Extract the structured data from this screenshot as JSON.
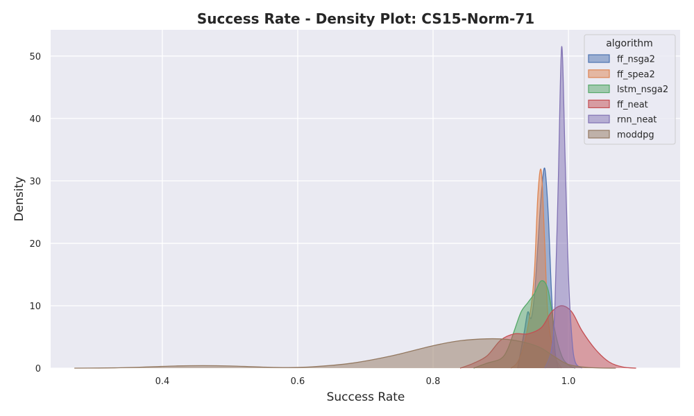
{
  "chart_data": {
    "type": "area",
    "title": "Success Rate - Density Plot: CS15-Norm-71",
    "xlabel": "Success Rate",
    "ylabel": "Density",
    "xlim": [
      0.235,
      1.165
    ],
    "ylim": [
      0,
      54.2
    ],
    "x_ticks": [
      0.4,
      0.6,
      0.8,
      1.0
    ],
    "x_tick_labels": [
      "0.4",
      "0.6",
      "0.8",
      "1.0"
    ],
    "y_ticks": [
      0,
      10,
      20,
      30,
      40,
      50
    ],
    "y_tick_labels": [
      "0",
      "10",
      "20",
      "30",
      "40",
      "50"
    ],
    "grid": true,
    "legend": {
      "title": "algorithm",
      "placement": "top-right"
    },
    "series": [
      {
        "name": "ff_nsga2",
        "color": "#4c72b0",
        "points": [
          [
            0.925,
            0
          ],
          [
            0.935,
            6
          ],
          [
            0.94,
            9
          ],
          [
            0.945,
            8
          ],
          [
            0.95,
            12
          ],
          [
            0.955,
            20
          ],
          [
            0.96,
            28
          ],
          [
            0.965,
            32
          ],
          [
            0.97,
            25
          ],
          [
            0.975,
            12
          ],
          [
            0.98,
            3
          ],
          [
            0.985,
            0
          ]
        ]
      },
      {
        "name": "ff_spea2",
        "color": "#dd8452",
        "points": [
          [
            0.915,
            0
          ],
          [
            0.925,
            1
          ],
          [
            0.935,
            4
          ],
          [
            0.945,
            10
          ],
          [
            0.95,
            16
          ],
          [
            0.955,
            28
          ],
          [
            0.96,
            31.5
          ],
          [
            0.965,
            20
          ],
          [
            0.97,
            8
          ],
          [
            0.98,
            2
          ],
          [
            0.99,
            0
          ]
        ]
      },
      {
        "name": "lstm_nsga2",
        "color": "#55a868",
        "points": [
          [
            0.86,
            0
          ],
          [
            0.88,
            0.8
          ],
          [
            0.9,
            1.5
          ],
          [
            0.91,
            3
          ],
          [
            0.92,
            6
          ],
          [
            0.93,
            9
          ],
          [
            0.94,
            10.5
          ],
          [
            0.95,
            12
          ],
          [
            0.96,
            14
          ],
          [
            0.97,
            12.5
          ],
          [
            0.98,
            6
          ],
          [
            0.99,
            2
          ],
          [
            1.0,
            0.5
          ],
          [
            1.01,
            0
          ]
        ]
      },
      {
        "name": "ff_neat",
        "color": "#c44e52",
        "points": [
          [
            0.84,
            0
          ],
          [
            0.86,
            0.8
          ],
          [
            0.88,
            2
          ],
          [
            0.9,
            4.5
          ],
          [
            0.92,
            5.5
          ],
          [
            0.94,
            5.5
          ],
          [
            0.96,
            6.5
          ],
          [
            0.975,
            9
          ],
          [
            0.99,
            10
          ],
          [
            1.005,
            9
          ],
          [
            1.02,
            6
          ],
          [
            1.04,
            3
          ],
          [
            1.06,
            1
          ],
          [
            1.08,
            0.2
          ],
          [
            1.1,
            0
          ]
        ]
      },
      {
        "name": "rnn_neat",
        "color": "#8172b3",
        "points": [
          [
            0.965,
            0
          ],
          [
            0.975,
            3
          ],
          [
            0.98,
            10
          ],
          [
            0.985,
            30
          ],
          [
            0.99,
            51.5
          ],
          [
            0.995,
            34
          ],
          [
            1.0,
            15
          ],
          [
            1.005,
            5
          ],
          [
            1.01,
            1
          ],
          [
            1.02,
            0
          ]
        ]
      },
      {
        "name": "moddpg",
        "color": "#937860",
        "points": [
          [
            0.27,
            0
          ],
          [
            0.33,
            0.05
          ],
          [
            0.38,
            0.2
          ],
          [
            0.42,
            0.35
          ],
          [
            0.46,
            0.4
          ],
          [
            0.5,
            0.35
          ],
          [
            0.54,
            0.2
          ],
          [
            0.58,
            0.1
          ],
          [
            0.62,
            0.2
          ],
          [
            0.68,
            0.8
          ],
          [
            0.74,
            2
          ],
          [
            0.8,
            3.6
          ],
          [
            0.84,
            4.4
          ],
          [
            0.88,
            4.7
          ],
          [
            0.91,
            4.6
          ],
          [
            0.94,
            4
          ],
          [
            0.96,
            3.2
          ],
          [
            0.98,
            1.8
          ],
          [
            1.0,
            0.6
          ],
          [
            1.03,
            0.1
          ],
          [
            1.07,
            0
          ]
        ]
      }
    ]
  }
}
